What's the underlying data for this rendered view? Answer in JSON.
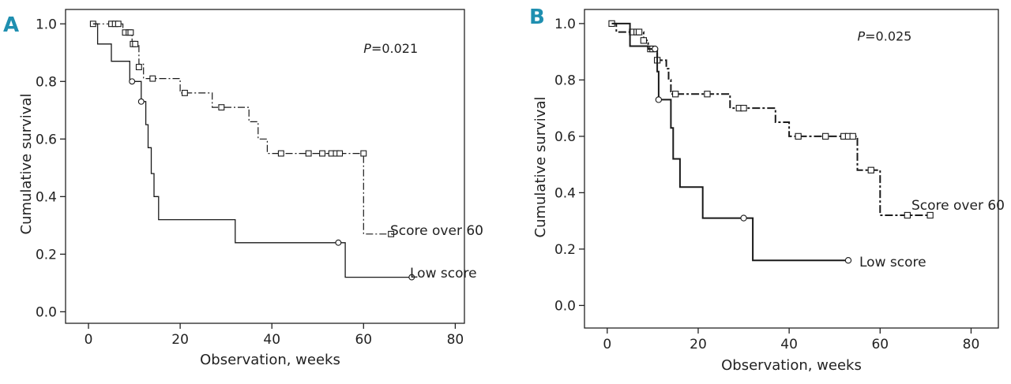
{
  "chart_data": [
    {
      "type": "line",
      "panel": "A",
      "xlabel": "Observation, weeks",
      "ylabel": "Cumulative survival",
      "xlim": [
        -5,
        82
      ],
      "ylim": [
        -0.04,
        1.05
      ],
      "xticks": [
        0,
        20,
        40,
        60,
        80
      ],
      "yticks": [
        0.0,
        0.2,
        0.4,
        0.6,
        0.8,
        1.0
      ],
      "ytick_labels": [
        "0.0",
        "0.2",
        "0.4",
        "0.6",
        "0.8",
        "1.0"
      ],
      "annotation": {
        "italic": "P",
        "text": "=0.021",
        "x": 60,
        "y": 0.9
      },
      "series": [
        {
          "name": "Score over 60",
          "style": "dashdot",
          "steps": [
            [
              1,
              1.0
            ],
            [
              7.5,
              0.97
            ],
            [
              9.5,
              0.93
            ],
            [
              11,
              0.86
            ],
            [
              12,
              0.81
            ],
            [
              20,
              0.76
            ],
            [
              27,
              0.71
            ],
            [
              35,
              0.66
            ],
            [
              37,
              0.6
            ],
            [
              39,
              0.55
            ],
            [
              60,
              0.27
            ],
            [
              66,
              0.27
            ]
          ],
          "censored": [
            [
              1,
              1.0
            ],
            [
              5,
              1.0
            ],
            [
              5.8,
              1.0
            ],
            [
              6.5,
              1.0
            ],
            [
              8,
              0.97
            ],
            [
              8.8,
              0.97
            ],
            [
              9.2,
              0.97
            ],
            [
              9.7,
              0.93
            ],
            [
              10.2,
              0.93
            ],
            [
              11,
              0.85
            ],
            [
              14,
              0.81
            ],
            [
              21,
              0.76
            ],
            [
              29,
              0.71
            ],
            [
              42,
              0.55
            ],
            [
              48,
              0.55
            ],
            [
              51,
              0.55
            ],
            [
              53,
              0.55
            ],
            [
              54,
              0.55
            ],
            [
              54.8,
              0.55
            ],
            [
              60,
              0.55
            ],
            [
              66,
              0.27
            ]
          ]
        },
        {
          "name": "Low score",
          "style": "solid",
          "steps": [
            [
              1,
              1.0
            ],
            [
              2,
              0.93
            ],
            [
              5,
              0.87
            ],
            [
              9,
              0.8
            ],
            [
              11.5,
              0.73
            ],
            [
              12.5,
              0.65
            ],
            [
              13,
              0.57
            ],
            [
              13.7,
              0.48
            ],
            [
              14.3,
              0.4
            ],
            [
              15.3,
              0.32
            ],
            [
              32,
              0.24
            ],
            [
              56,
              0.12
            ],
            [
              70.5,
              0.12
            ]
          ],
          "censored": [
            [
              9.5,
              0.8
            ],
            [
              11.5,
              0.73
            ],
            [
              54.5,
              0.24
            ],
            [
              70.5,
              0.12
            ]
          ]
        }
      ],
      "labels": {
        "score_over_60": "Score over 60",
        "low_score": "Low score"
      }
    },
    {
      "type": "line",
      "panel": "B",
      "xlabel": "Observation, weeks",
      "ylabel": "Cumulative survival",
      "xlim": [
        -5,
        86
      ],
      "ylim": [
        -0.08,
        1.05
      ],
      "xticks": [
        0,
        20,
        40,
        60,
        80
      ],
      "yticks": [
        0.0,
        0.2,
        0.4,
        0.6,
        0.8,
        1.0
      ],
      "ytick_labels": [
        "0.0",
        "0.2",
        "0.4",
        "0.6",
        "0.8",
        "1.0"
      ],
      "annotation": {
        "italic": "P",
        "text": "=0.025",
        "x": 55,
        "y": 0.94
      },
      "series": [
        {
          "name": "Score over 60",
          "style": "dashdot",
          "steps": [
            [
              1,
              1.0
            ],
            [
              2,
              0.97
            ],
            [
              8,
              0.94
            ],
            [
              9,
              0.91
            ],
            [
              11,
              0.87
            ],
            [
              13,
              0.84
            ],
            [
              13.5,
              0.8
            ],
            [
              14,
              0.75
            ],
            [
              27,
              0.7
            ],
            [
              37,
              0.65
            ],
            [
              40,
              0.6
            ],
            [
              55,
              0.48
            ],
            [
              60,
              0.32
            ],
            [
              71,
              0.32
            ]
          ],
          "censored": [
            [
              1,
              1.0
            ],
            [
              5.5,
              0.97
            ],
            [
              6.5,
              0.97
            ],
            [
              7,
              0.97
            ],
            [
              8,
              0.94
            ],
            [
              9.5,
              0.91
            ],
            [
              10,
              0.91
            ],
            [
              11,
              0.87
            ],
            [
              15,
              0.75
            ],
            [
              22,
              0.75
            ],
            [
              29,
              0.7
            ],
            [
              30,
              0.7
            ],
            [
              42,
              0.6
            ],
            [
              48,
              0.6
            ],
            [
              52,
              0.6
            ],
            [
              53,
              0.6
            ],
            [
              54,
              0.6
            ],
            [
              58,
              0.48
            ],
            [
              66,
              0.32
            ],
            [
              71,
              0.32
            ]
          ]
        },
        {
          "name": "Low score",
          "style": "solid",
          "steps": [
            [
              1,
              1.0
            ],
            [
              5,
              0.92
            ],
            [
              9,
              0.91
            ],
            [
              11,
              0.83
            ],
            [
              11.3,
              0.73
            ],
            [
              14,
              0.63
            ],
            [
              14.5,
              0.52
            ],
            [
              16,
              0.42
            ],
            [
              21,
              0.31
            ],
            [
              32,
              0.16
            ],
            [
              53,
              0.16
            ]
          ],
          "censored": [
            [
              10.5,
              0.91
            ],
            [
              11.3,
              0.73
            ],
            [
              30,
              0.31
            ],
            [
              53,
              0.16
            ]
          ]
        }
      ],
      "labels": {
        "score_over_60": "Score over 60",
        "low_score": "Low score"
      }
    }
  ]
}
